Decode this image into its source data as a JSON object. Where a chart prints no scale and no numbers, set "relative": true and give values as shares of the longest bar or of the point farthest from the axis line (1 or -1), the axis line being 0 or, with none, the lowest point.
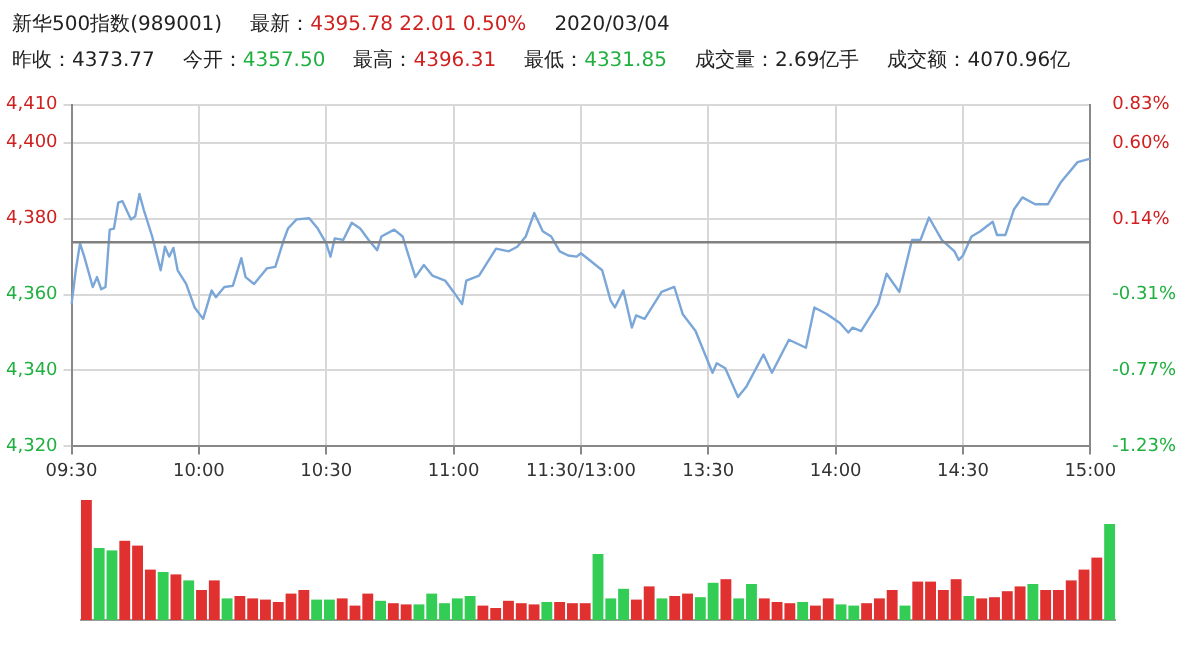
{
  "chart_data": [
    {
      "type": "line",
      "title": "新华500指数(989001)",
      "annotations": [
        "最新：4395.78  22.01  0.50%",
        "2020/03/04",
        "昨收：4373.77",
        "今开：4357.50",
        "最高：4396.31",
        "最低：4331.85",
        "成交量：2.69亿手",
        "成交额：4070.96亿"
      ],
      "categories": [
        "09:30",
        null,
        null,
        null,
        null,
        null,
        null,
        null,
        null,
        null,
        null,
        null,
        null,
        null,
        null,
        null,
        null,
        null,
        null,
        null,
        null,
        null,
        null,
        null,
        null,
        null,
        null,
        null,
        null,
        null,
        "10:00",
        null,
        null,
        null,
        null,
        null,
        null,
        null,
        null,
        null,
        null,
        null,
        null,
        null,
        null,
        null,
        null,
        null,
        null,
        null,
        null,
        null,
        null,
        null,
        null,
        null,
        null,
        null,
        null,
        null,
        "10:30",
        null,
        null,
        null,
        null,
        null,
        null,
        null,
        null,
        null,
        null,
        null,
        null,
        null,
        null,
        null,
        null,
        null,
        null,
        null,
        null,
        null,
        null,
        null,
        null,
        null,
        null,
        null,
        null,
        null,
        "11:00",
        null,
        null,
        null,
        null,
        null,
        null,
        null,
        null,
        null,
        null,
        null,
        null,
        null,
        null,
        null,
        null,
        null,
        null,
        null,
        null,
        null,
        null,
        null,
        null,
        null,
        null,
        null,
        null,
        null,
        "11:30/13:00",
        null,
        null,
        null,
        null,
        null,
        null,
        null,
        null,
        null,
        null,
        null,
        null,
        null,
        null,
        null,
        null,
        null,
        null,
        null,
        null,
        null,
        null,
        null,
        null,
        null,
        null,
        null,
        null,
        null,
        "13:30",
        null,
        null,
        null,
        null,
        null,
        null,
        null,
        null,
        null,
        null,
        null,
        null,
        null,
        null,
        null,
        null,
        null,
        null,
        null,
        null,
        null,
        null,
        null,
        null,
        null,
        null,
        null,
        null,
        null,
        "14:00",
        null,
        null,
        null,
        null,
        null,
        null,
        null,
        null,
        null,
        null,
        null,
        null,
        null,
        null,
        null,
        null,
        null,
        null,
        null,
        null,
        null,
        null,
        null,
        null,
        null,
        null,
        null,
        null,
        null,
        "14:30",
        null,
        null,
        null,
        null,
        null,
        null,
        null,
        null,
        null,
        null,
        null,
        null,
        null,
        null,
        null,
        null,
        null,
        null,
        null,
        null,
        null,
        null,
        null,
        null,
        null,
        null,
        null,
        null,
        null,
        "15:00"
      ],
      "series": [
        {
          "color": "#7aa6d8",
          "values": [
            4357.5,
            4366.4,
            4373.5,
            4370,
            null,
            4362,
            4364.6,
            4361.4,
            4362,
            4377.1,
            4377.4,
            4384.2,
            4384.6,
            null,
            4379.8,
            4380.6,
            4386.5,
            4382.4,
            null,
            4375.3,
            null,
            4366.4,
            4372.6,
            4370,
            4372.3,
            4366.4,
            null,
            4362.8,
            null,
            4356.6,
            null,
            4353.6,
            null,
            4361.1,
            4359.3,
            null,
            4362,
            null,
            4362.3,
            null,
            4369.6,
            4364.6,
            null,
            4362.8,
            null,
            null,
            4366.9,
            null,
            4367.3,
            null,
            4374.4,
            4377.4,
            null,
            4379.8,
            null,
            null,
            4380.1,
            null,
            4377.4,
            null,
            4373.5,
            4370,
            4374.8,
            null,
            4374.4,
            null,
            4378.9,
            null,
            4377.4,
            null,
            4374.4,
            null,
            4371.7,
            4375.3,
            null,
            null,
            4377.1,
            null,
            4375.3,
            4371.7,
            null,
            4364.6,
            null,
            4367.8,
            null,
            4365,
            null,
            null,
            4363.7,
            null,
            4360.7,
            null,
            4357.5,
            4363.7,
            null,
            null,
            4365,
            null,
            null,
            null,
            4372.1,
            null,
            null,
            4371.4,
            null,
            4372.6,
            null,
            4375.3,
            null,
            4381.5,
            null,
            4376.7,
            null,
            4375.3,
            null,
            4371.4,
            null,
            4370.3,
            null,
            4370,
            4370.9,
            null,
            4369.1,
            null,
            null,
            4366.4,
            null,
            4358.4,
            4356.6,
            null,
            4361.1,
            null,
            4351.3,
            4354.5,
            null,
            4353.6,
            null,
            null,
            null,
            4360.7,
            null,
            null,
            4362,
            null,
            4354.8,
            null,
            null,
            4350.4,
            null,
            null,
            null,
            4339.4,
            4341.9,
            null,
            4340.6,
            null,
            null,
            4333,
            null,
            4335.8,
            null,
            null,
            null,
            4344.2,
            null,
            4339.4,
            null,
            null,
            null,
            4348.1,
            null,
            null,
            null,
            4346,
            null,
            4356.6,
            null,
            null,
            4354.8,
            null,
            null,
            4352.5,
            null,
            4350,
            4351.3,
            null,
            4350.4,
            null,
            null,
            null,
            4357.5,
            null,
            4365.5,
            null,
            null,
            4360.7,
            null,
            null,
            4374.4,
            null,
            4374.4,
            null,
            4380.3,
            null,
            null,
            4374.4,
            null,
            null,
            4371.4,
            4369.1,
            4370.3,
            null,
            4375.3,
            null,
            4376.6,
            null,
            null,
            4379.2,
            4375.7,
            null,
            4375.7,
            null,
            4382.4,
            null,
            4385.6,
            null,
            null,
            4383.8,
            null,
            null,
            4383.8,
            null,
            null,
            4389.5,
            null,
            null,
            null,
            4394.9,
            null,
            null,
            4395.8
          ]
        }
      ],
      "ylim": [
        4320,
        4410
      ],
      "yticks": [
        {
          "value": 4320,
          "label": "4,320"
        },
        {
          "value": 4340,
          "label": "4,340"
        },
        {
          "value": 4360,
          "label": "4,360"
        },
        {
          "value": 4380,
          "label": "4,380"
        },
        {
          "value": 4400,
          "label": "4,400"
        },
        {
          "value": 4410,
          "label": "4,410"
        }
      ],
      "y2lim": [
        -1.23,
        0.83
      ],
      "y2ticks": [
        {
          "value": -1.23,
          "label": "-1.23%"
        },
        {
          "value": -0.77,
          "label": "-0.77%"
        },
        {
          "value": -0.31,
          "label": "-0.31%"
        },
        {
          "value": 0.14,
          "label": "0.14%"
        },
        {
          "value": 0.6,
          "label": "0.60%"
        },
        {
          "value": 0.83,
          "label": "0.83%"
        }
      ],
      "ref_lines": [
        {
          "axis": "y",
          "value": 4373.77,
          "color": "#808080"
        }
      ],
      "grid": true,
      "marker": "none",
      "line_style": "solid"
    },
    {
      "type": "bar",
      "relative": true,
      "categories": [
        null,
        null,
        null,
        null,
        null,
        null,
        null,
        null,
        null,
        null,
        null,
        null,
        null,
        null,
        null,
        null,
        null,
        null,
        null,
        null,
        null,
        null,
        null,
        null,
        null,
        null,
        null,
        null,
        null,
        null,
        null,
        null,
        null,
        null,
        null,
        null,
        null,
        null,
        null,
        null,
        null,
        null,
        null,
        null,
        null,
        null,
        null,
        null,
        null,
        null,
        null,
        null,
        null,
        null,
        null,
        null,
        null,
        null,
        null,
        null,
        null,
        null,
        null,
        null,
        null,
        null,
        null,
        null,
        null,
        null,
        null,
        null,
        null,
        null,
        null,
        null,
        null,
        null,
        null,
        null,
        null
      ],
      "values": [
        1.0,
        0.6,
        0.58,
        0.66,
        0.62,
        0.42,
        0.4,
        0.38,
        0.33,
        0.25,
        0.33,
        0.18,
        0.2,
        0.18,
        0.17,
        0.15,
        0.22,
        0.25,
        0.17,
        0.17,
        0.18,
        0.12,
        0.22,
        0.16,
        0.14,
        0.13,
        0.13,
        0.22,
        0.14,
        0.18,
        0.2,
        0.12,
        0.1,
        0.16,
        0.14,
        0.13,
        0.15,
        0.15,
        0.14,
        0.14,
        0.55,
        0.18,
        0.26,
        0.17,
        0.28,
        0.18,
        0.2,
        0.22,
        0.19,
        0.31,
        0.34,
        0.18,
        0.3,
        0.18,
        0.15,
        0.14,
        0.15,
        0.12,
        0.18,
        0.13,
        0.12,
        0.14,
        0.18,
        0.25,
        0.12,
        0.32,
        0.32,
        0.25,
        0.34,
        0.2,
        0.18,
        0.19,
        0.24,
        0.28,
        0.3,
        0.25,
        0.25,
        0.33,
        0.42,
        0.52,
        0.8
      ],
      "colors": [
        "#e03030",
        "#33cc55",
        "#33cc55",
        "#e03030",
        "#e03030",
        "#e03030",
        "#33cc55",
        "#e03030",
        "#33cc55",
        "#e03030",
        "#e03030",
        "#33cc55",
        "#e03030",
        "#e03030",
        "#e03030",
        "#e03030",
        "#e03030",
        "#e03030",
        "#33cc55",
        "#33cc55",
        "#e03030",
        "#e03030",
        "#e03030",
        "#33cc55",
        "#e03030",
        "#e03030",
        "#33cc55",
        "#33cc55",
        "#33cc55",
        "#33cc55",
        "#33cc55",
        "#e03030",
        "#e03030",
        "#e03030",
        "#e03030",
        "#e03030",
        "#33cc55",
        "#e03030",
        "#e03030",
        "#e03030",
        "#33cc55",
        "#33cc55",
        "#33cc55",
        "#e03030",
        "#e03030",
        "#33cc55",
        "#e03030",
        "#e03030",
        "#33cc55",
        "#33cc55",
        "#e03030",
        "#33cc55",
        "#33cc55",
        "#e03030",
        "#e03030",
        "#e03030",
        "#33cc55",
        "#e03030",
        "#e03030",
        "#33cc55",
        "#33cc55",
        "#e03030",
        "#e03030",
        "#e03030",
        "#33cc55",
        "#e03030",
        "#e03030",
        "#e03030",
        "#e03030",
        "#33cc55",
        "#e03030",
        "#e03030",
        "#e03030",
        "#e03030",
        "#33cc55",
        "#e03030",
        "#e03030",
        "#e03030",
        "#e03030",
        "#e03030",
        "#33cc55"
      ]
    }
  ]
}
